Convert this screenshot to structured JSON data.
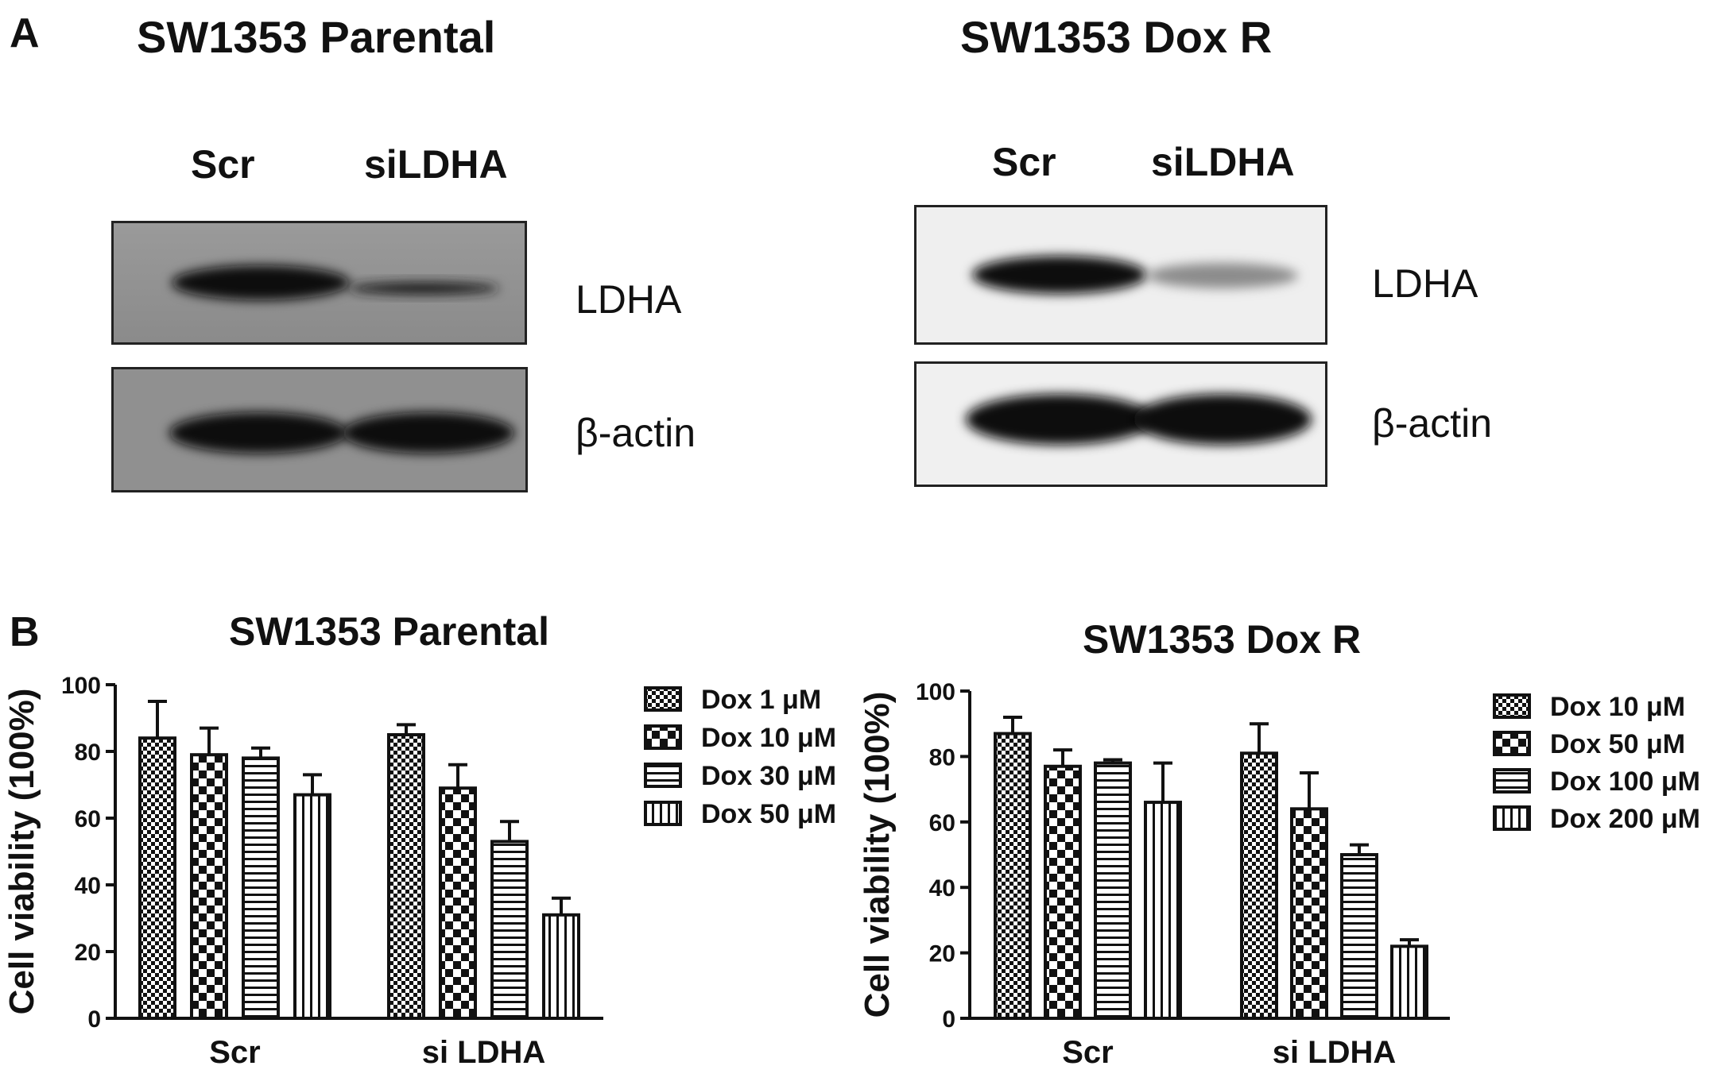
{
  "panel_a": {
    "letter": "A",
    "blots": [
      {
        "title": "SW1353 Parental",
        "lanes": [
          "Scr",
          "siLDHA"
        ],
        "proteins": [
          "LDHA",
          "β-actin"
        ],
        "background": "#8e8e8e"
      },
      {
        "title": "SW1353 Dox R",
        "lanes": [
          "Scr",
          "siLDHA"
        ],
        "proteins": [
          "LDHA",
          "β-actin"
        ],
        "background": "#ececec"
      }
    ]
  },
  "panel_b": {
    "letter": "B"
  },
  "chart_data": [
    {
      "type": "bar",
      "title": "SW1353 Parental",
      "ylabel": "Cell viability (100%)",
      "xlabel": "",
      "ylim": [
        0,
        100
      ],
      "yticks": [
        "0",
        "20",
        "40",
        "60",
        "80",
        "100"
      ],
      "categories": [
        "Scr",
        "si LDHA"
      ],
      "legend_position": "right",
      "series": [
        {
          "name": "Dox 1 μM",
          "pattern": "fine-check",
          "values": [
            84,
            85
          ],
          "errors": [
            11,
            3
          ]
        },
        {
          "name": "Dox 10 μM",
          "pattern": "coarse-check",
          "values": [
            79,
            69
          ],
          "errors": [
            8,
            7
          ]
        },
        {
          "name": "Dox 30 μM",
          "pattern": "horizontal",
          "values": [
            78,
            53
          ],
          "errors": [
            3,
            6
          ]
        },
        {
          "name": "Dox 50 μM",
          "pattern": "vertical",
          "values": [
            67,
            31
          ],
          "errors": [
            6,
            5
          ]
        }
      ]
    },
    {
      "type": "bar",
      "title": "SW1353 Dox R",
      "ylabel": "Cell viability (100%)",
      "xlabel": "",
      "ylim": [
        0,
        100
      ],
      "yticks": [
        "0",
        "20",
        "40",
        "60",
        "80",
        "100"
      ],
      "categories": [
        "Scr",
        "si LDHA"
      ],
      "legend_position": "right",
      "series": [
        {
          "name": "Dox 10 μM",
          "pattern": "fine-check",
          "values": [
            87,
            81
          ],
          "errors": [
            5,
            9
          ]
        },
        {
          "name": "Dox 50 μM",
          "pattern": "coarse-check",
          "values": [
            77,
            64
          ],
          "errors": [
            5,
            11
          ]
        },
        {
          "name": "Dox 100 μM",
          "pattern": "horizontal",
          "values": [
            78,
            50
          ],
          "errors": [
            1,
            3
          ]
        },
        {
          "name": "Dox 200 μM",
          "pattern": "vertical",
          "values": [
            66,
            22
          ],
          "errors": [
            12,
            2
          ]
        }
      ]
    }
  ]
}
